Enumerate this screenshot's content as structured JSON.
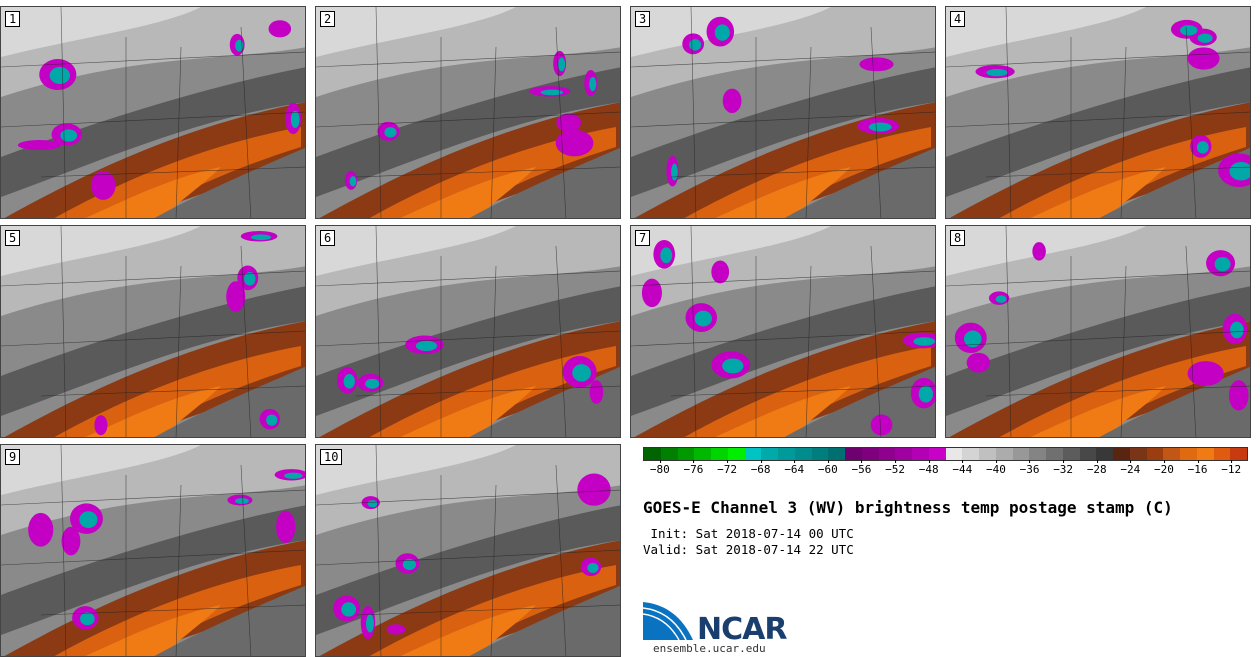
{
  "panels": [
    {
      "label": "1"
    },
    {
      "label": "2"
    },
    {
      "label": "3"
    },
    {
      "label": "4"
    },
    {
      "label": "5"
    },
    {
      "label": "6"
    },
    {
      "label": "7"
    },
    {
      "label": "8"
    },
    {
      "label": "9"
    },
    {
      "label": "10"
    }
  ],
  "colorbar": {
    "colors": [
      "#006400",
      "#007f00",
      "#009a00",
      "#00b800",
      "#00d500",
      "#00ee00",
      "#00c4c4",
      "#00aaaa",
      "#009a9a",
      "#008c8c",
      "#007e7e",
      "#006f6f",
      "#6f006f",
      "#7f007f",
      "#8f008f",
      "#a000a0",
      "#b400b4",
      "#c800c8",
      "#e8e8e8",
      "#d4d4d4",
      "#c0c0c0",
      "#acacac",
      "#989898",
      "#848484",
      "#707070",
      "#5c5c5c",
      "#484848",
      "#383838",
      "#5a2510",
      "#7a3416",
      "#9a3e10",
      "#c25614",
      "#e06a10",
      "#f07a14",
      "#e05a10",
      "#c83a10"
    ],
    "tick_labels": [
      "−80",
      "−76",
      "−72",
      "−68",
      "−64",
      "−60",
      "−56",
      "−52",
      "−48",
      "−44",
      "−40",
      "−36",
      "−32",
      "−28",
      "−24",
      "−20",
      "−16",
      "−12"
    ],
    "min": -82,
    "max": -10
  },
  "title": "GOES-E Channel 3 (WV) brightness temp postage stamp (C)",
  "init_line": " Init: Sat 2018-07-14 00 UTC",
  "valid_line": "Valid: Sat 2018-07-14 22 UTC",
  "logo": {
    "text": "NCAR",
    "url": "ensemble.ucar.edu"
  }
}
